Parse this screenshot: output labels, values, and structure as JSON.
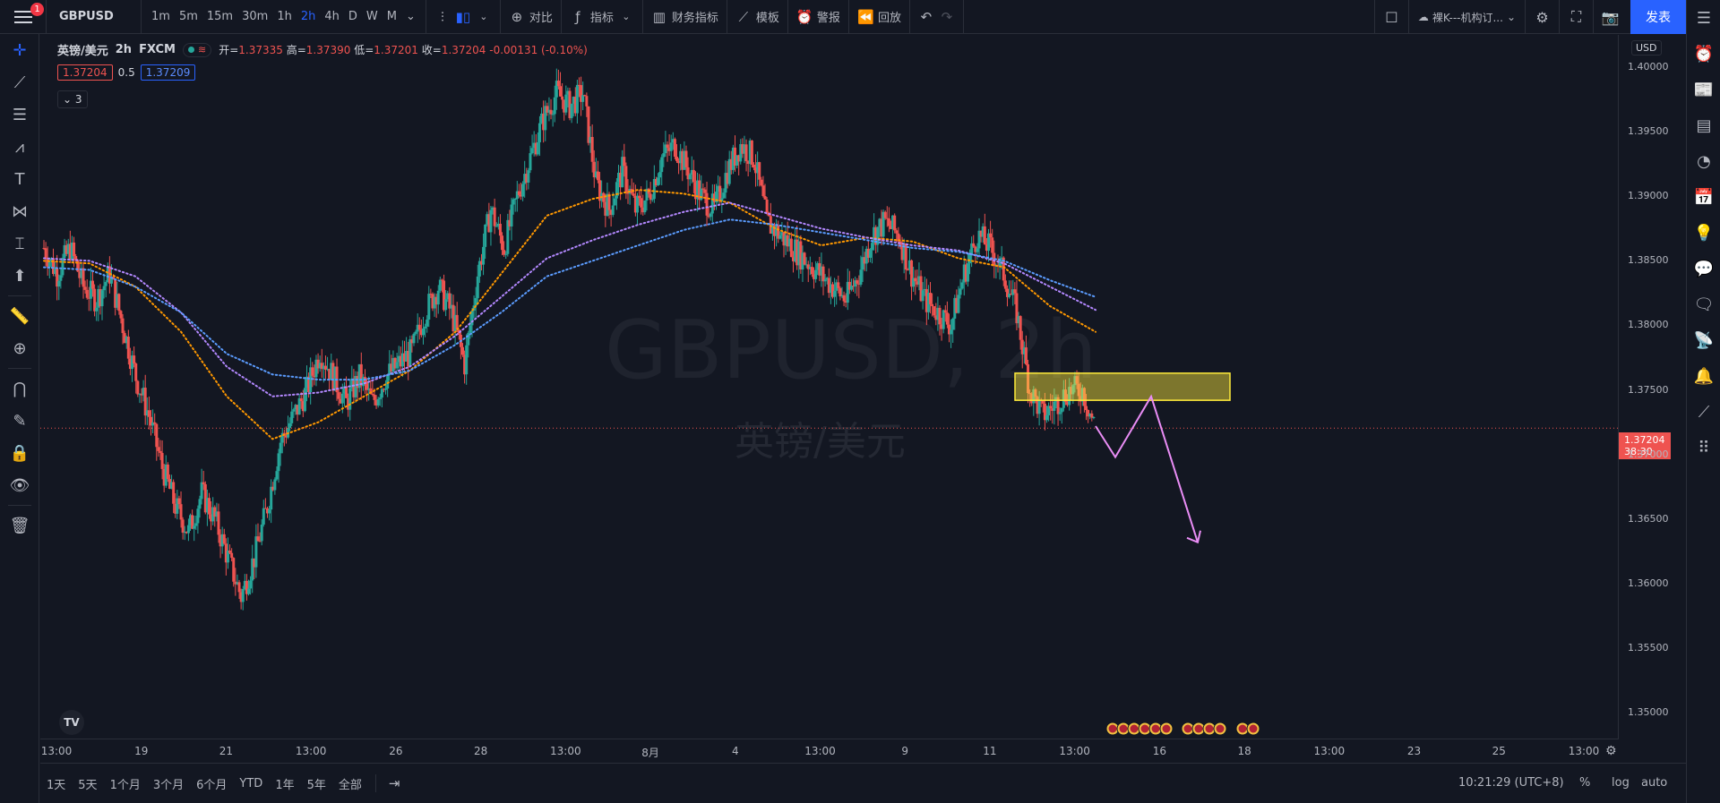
{
  "topbar": {
    "notification_count": "1",
    "symbol": "GBPUSD",
    "intervals": [
      "1m",
      "5m",
      "15m",
      "30m",
      "1h",
      "2h",
      "4h",
      "D",
      "W",
      "M"
    ],
    "active_interval": "2h",
    "compare_label": "对比",
    "indicators_label": "指标",
    "financials_label": "财务指标",
    "templates_label": "模板",
    "alert_label": "警报",
    "replay_label": "回放",
    "layout_name": "裸K---机构订...",
    "publish_label": "发表"
  },
  "legend": {
    "name": "英镑/美元",
    "interval": "2h",
    "exchange": "FXCM",
    "open_label": "开=",
    "open": "1.37335",
    "high_label": "高=",
    "high": "1.37390",
    "low_label": "低=",
    "low": "1.37201",
    "close_label": "收=",
    "close": "1.37204",
    "change": "-0.00131 (-0.10%)",
    "bid": "1.37204",
    "spread": "0.5",
    "ask": "1.37209",
    "collapse_count": "3"
  },
  "watermark": {
    "symbol": "GBPUSD, 2h",
    "name": "英镑/美元"
  },
  "price_scale": {
    "currency": "USD",
    "labels": [
      "1.40000",
      "1.39500",
      "1.39000",
      "1.38500",
      "1.38000",
      "1.37500",
      "1.37000",
      "1.36500",
      "1.36000",
      "1.35500",
      "1.35000"
    ],
    "current_price": "1.37204",
    "countdown": "38:30"
  },
  "time_scale": {
    "labels": [
      "13:00",
      "19",
      "21",
      "13:00",
      "26",
      "28",
      "13:00",
      "8月",
      "4",
      "13:00",
      "9",
      "11",
      "13:00",
      "16",
      "18",
      "13:00",
      "23",
      "25",
      "13:00"
    ]
  },
  "bottombar": {
    "ranges": [
      "1天",
      "5天",
      "1个月",
      "3个月",
      "6个月",
      "YTD",
      "1年",
      "5年",
      "全部"
    ],
    "clock": "10:21:29 (UTC+8)",
    "percent": "%",
    "log": "log",
    "auto": "auto"
  },
  "chart_data": {
    "type": "candlestick",
    "symbol": "GBPUSD",
    "interval": "2h",
    "ylim": [
      1.348,
      1.4025
    ],
    "x_ticks": [
      "13:00",
      "19",
      "21",
      "13:00",
      "26",
      "28",
      "13:00",
      "8月",
      "4",
      "13:00",
      "9",
      "11",
      "13:00",
      "16",
      "18",
      "13:00",
      "23",
      "25",
      "13:00"
    ],
    "close_path": [
      1.386,
      1.384,
      1.386,
      1.383,
      1.382,
      1.384,
      1.38,
      1.376,
      1.373,
      1.369,
      1.366,
      1.364,
      1.367,
      1.365,
      1.362,
      1.359,
      1.362,
      1.366,
      1.371,
      1.373,
      1.375,
      1.378,
      1.376,
      1.374,
      1.376,
      1.374,
      1.376,
      1.377,
      1.378,
      1.381,
      1.383,
      1.381,
      1.377,
      1.384,
      1.389,
      1.386,
      1.39,
      1.393,
      1.396,
      1.398,
      1.397,
      1.398,
      1.391,
      1.389,
      1.392,
      1.389,
      1.39,
      1.393,
      1.394,
      1.392,
      1.39,
      1.389,
      1.392,
      1.394,
      1.393,
      1.388,
      1.387,
      1.386,
      1.385,
      1.384,
      1.383,
      1.382,
      1.384,
      1.387,
      1.388,
      1.387,
      1.384,
      1.382,
      1.381,
      1.38,
      1.384,
      1.387,
      1.386,
      1.384,
      1.381,
      1.375,
      1.373,
      1.374,
      1.375,
      1.375,
      1.372
    ],
    "moving_averages": [
      {
        "color": "#ff9800",
        "values": [
          1.385,
          1.3848,
          1.383,
          1.3795,
          1.3745,
          1.3712,
          1.3725,
          1.3745,
          1.3765,
          1.3795,
          1.384,
          1.3885,
          1.3898,
          1.3905,
          1.3902,
          1.3895,
          1.3875,
          1.3862,
          1.3868,
          1.3865,
          1.3852,
          1.3845,
          1.3815,
          1.3795
        ]
      },
      {
        "color": "#b388ff",
        "values": [
          1.3852,
          1.385,
          1.3838,
          1.381,
          1.3768,
          1.3745,
          1.3748,
          1.3755,
          1.3768,
          1.3792,
          1.3822,
          1.3852,
          1.3866,
          1.3878,
          1.3888,
          1.3895,
          1.3885,
          1.3875,
          1.3868,
          1.3862,
          1.3858,
          1.3848,
          1.383,
          1.3812
        ]
      },
      {
        "color": "#5b9cff",
        "values": [
          1.3845,
          1.3843,
          1.383,
          1.381,
          1.3778,
          1.3762,
          1.3758,
          1.3758,
          1.3765,
          1.3785,
          1.381,
          1.3838,
          1.385,
          1.3862,
          1.3874,
          1.3882,
          1.3878,
          1.3872,
          1.3866,
          1.386,
          1.3857,
          1.385,
          1.3835,
          1.3822
        ]
      }
    ],
    "annotations": {
      "zone": {
        "price_low": 1.3742,
        "price_high": 1.3763,
        "color": "#ffeb3b"
      },
      "projection_prices": [
        1.3722,
        1.3698,
        1.3745,
        1.3632
      ]
    },
    "current_price": 1.37204
  }
}
